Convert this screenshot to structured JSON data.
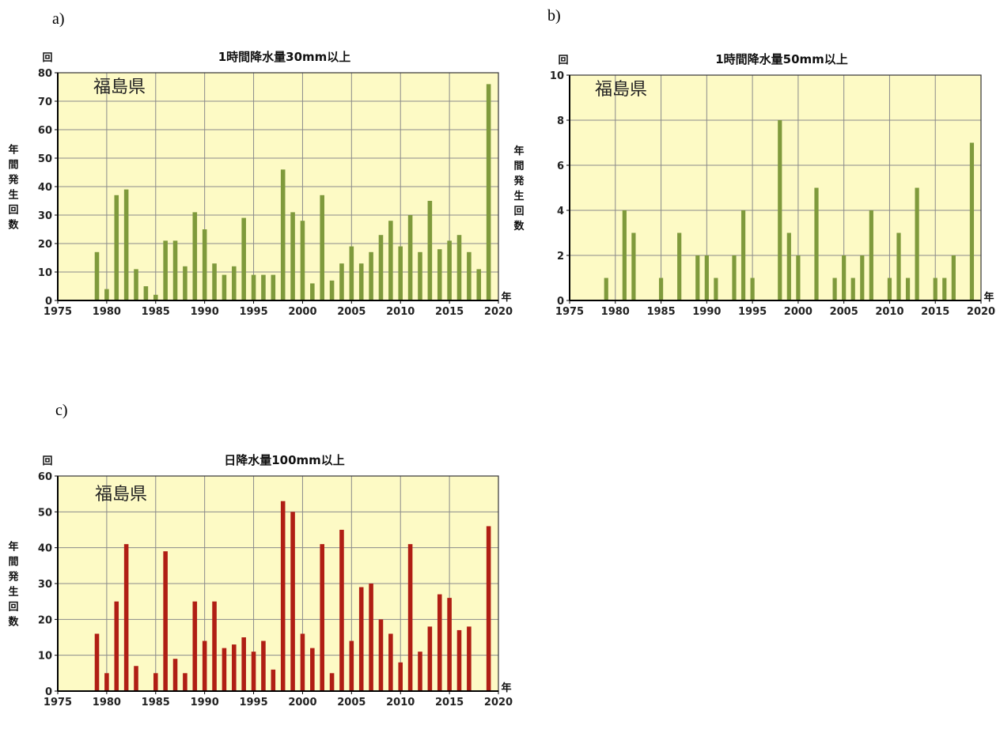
{
  "panels": [
    {
      "label": "a)",
      "colors": {
        "bar": "#7f9a3c",
        "plot_bg": "#fdfac5",
        "grid": "#8a8a8a"
      }
    },
    {
      "label": "b)",
      "colors": {
        "bar": "#7f9a3c",
        "plot_bg": "#fdfac5",
        "grid": "#8a8a8a"
      }
    },
    {
      "label": "c)",
      "colors": {
        "bar": "#b01e14",
        "plot_bg": "#fdfac5",
        "grid": "#8a8a8a"
      }
    }
  ],
  "chart_data": [
    {
      "type": "bar",
      "title": "1時間降水量30mm以上",
      "prefecture": "福島県",
      "ylabel": "年間発生回数",
      "yunit": "回",
      "xunit": "年",
      "ylim": [
        0,
        80
      ],
      "yticks": [
        0,
        10,
        20,
        30,
        40,
        50,
        60,
        70,
        80
      ],
      "xlim": [
        1975,
        2020
      ],
      "xticks": [
        1975,
        1980,
        1985,
        1990,
        1995,
        2000,
        2005,
        2010,
        2015,
        2020
      ],
      "grid": true,
      "x": [
        1979,
        1980,
        1981,
        1982,
        1983,
        1984,
        1985,
        1986,
        1987,
        1988,
        1989,
        1990,
        1991,
        1992,
        1993,
        1994,
        1995,
        1996,
        1997,
        1998,
        1999,
        2000,
        2001,
        2002,
        2003,
        2004,
        2005,
        2006,
        2007,
        2008,
        2009,
        2010,
        2011,
        2012,
        2013,
        2014,
        2015,
        2016,
        2017,
        2018,
        2019
      ],
      "values": [
        17,
        4,
        37,
        39,
        11,
        5,
        2,
        21,
        21,
        12,
        31,
        25,
        13,
        9,
        12,
        29,
        9,
        9,
        9,
        46,
        31,
        28,
        6,
        37,
        7,
        13,
        19,
        13,
        17,
        23,
        28,
        19,
        30,
        17,
        35,
        18,
        21,
        23,
        17,
        11,
        76
      ]
    },
    {
      "type": "bar",
      "title": "1時間降水量50mm以上",
      "prefecture": "福島県",
      "ylabel": "年間発生回数",
      "yunit": "回",
      "xunit": "年",
      "ylim": [
        0,
        10
      ],
      "yticks": [
        0,
        2,
        4,
        6,
        8,
        10
      ],
      "xlim": [
        1975,
        2020
      ],
      "xticks": [
        1975,
        1980,
        1985,
        1990,
        1995,
        2000,
        2005,
        2010,
        2015,
        2020
      ],
      "grid": true,
      "x": [
        1979,
        1981,
        1982,
        1985,
        1987,
        1989,
        1990,
        1991,
        1993,
        1994,
        1995,
        1998,
        1999,
        2000,
        2002,
        2004,
        2005,
        2006,
        2007,
        2008,
        2010,
        2011,
        2012,
        2013,
        2015,
        2016,
        2017,
        2019
      ],
      "values": [
        1,
        4,
        3,
        1,
        3,
        2,
        2,
        1,
        2,
        4,
        1,
        8,
        3,
        2,
        5,
        1,
        2,
        1,
        2,
        4,
        1,
        3,
        1,
        5,
        1,
        1,
        2,
        7
      ]
    },
    {
      "type": "bar",
      "title": "日降水量100mm以上",
      "prefecture": "福島県",
      "ylabel": "年間発生回数",
      "yunit": "回",
      "xunit": "年",
      "ylim": [
        0,
        60
      ],
      "yticks": [
        0,
        10,
        20,
        30,
        40,
        50,
        60
      ],
      "xlim": [
        1975,
        2020
      ],
      "xticks": [
        1975,
        1980,
        1985,
        1990,
        1995,
        2000,
        2005,
        2010,
        2015,
        2020
      ],
      "grid": true,
      "x": [
        1979,
        1980,
        1981,
        1982,
        1983,
        1985,
        1986,
        1987,
        1988,
        1989,
        1990,
        1991,
        1992,
        1993,
        1994,
        1995,
        1996,
        1997,
        1998,
        1999,
        2000,
        2001,
        2002,
        2003,
        2004,
        2005,
        2006,
        2007,
        2008,
        2009,
        2010,
        2011,
        2012,
        2013,
        2014,
        2015,
        2016,
        2017,
        2019
      ],
      "values": [
        16,
        5,
        25,
        41,
        7,
        5,
        39,
        9,
        5,
        25,
        14,
        25,
        12,
        13,
        15,
        11,
        14,
        6,
        53,
        50,
        16,
        12,
        41,
        5,
        45,
        14,
        29,
        30,
        20,
        16,
        8,
        41,
        11,
        18,
        27,
        26,
        17,
        18,
        46
      ]
    }
  ]
}
